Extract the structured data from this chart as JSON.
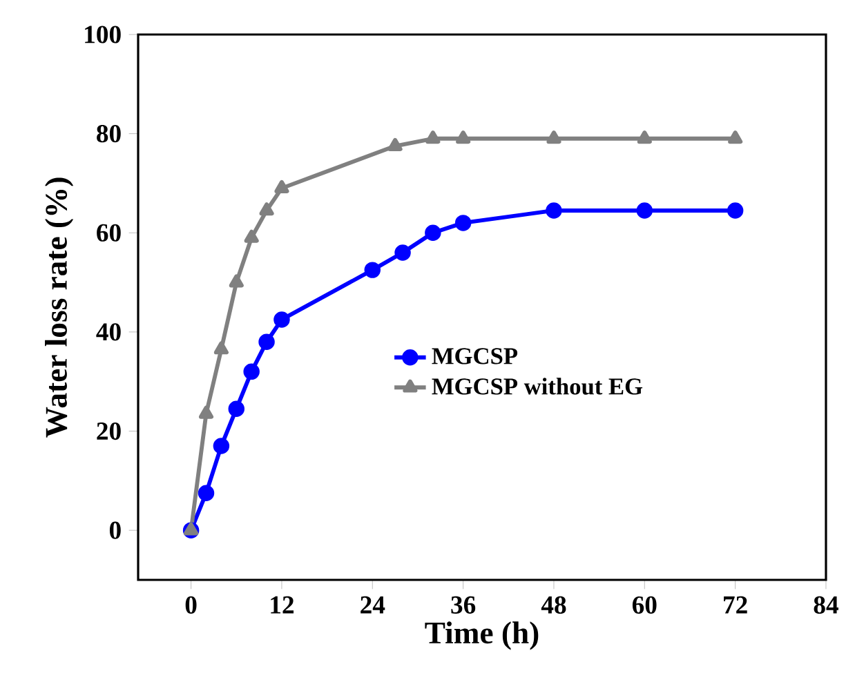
{
  "chart_data": {
    "type": "line",
    "xlabel": "Time (h)",
    "ylabel": "Water loss rate (%)",
    "x": [
      0,
      2,
      4,
      6,
      8,
      10,
      12,
      24,
      28,
      32,
      36,
      48,
      60,
      72
    ],
    "xlim": [
      -7,
      84
    ],
    "ylim": [
      -10,
      100
    ],
    "xticks": [
      0,
      12,
      24,
      36,
      48,
      60,
      72,
      84
    ],
    "yticks": [
      0,
      20,
      40,
      60,
      80,
      100
    ],
    "grid": false,
    "legend": "right",
    "line_style": "solid",
    "series": [
      {
        "name": "MGCSP",
        "color": "#0000ff",
        "marker": "circle",
        "values": [
          0,
          7.5,
          17,
          24.5,
          32,
          38,
          42.5,
          52.5,
          56,
          60,
          62,
          64.5,
          64.5,
          64.5
        ]
      },
      {
        "name": "MGCSP without EG",
        "color": "#808080",
        "marker": "triangle",
        "x": [
          0,
          2,
          4,
          6,
          8,
          10,
          12,
          27,
          32,
          36,
          48,
          60,
          72
        ],
        "values": [
          0,
          23.5,
          36.5,
          50,
          59,
          64.5,
          69,
          77.5,
          79,
          79,
          79,
          79,
          79
        ]
      }
    ]
  }
}
